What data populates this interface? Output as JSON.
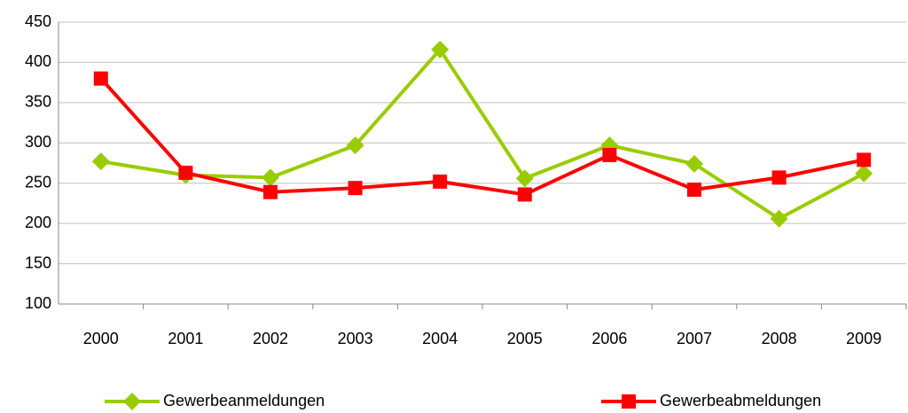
{
  "chart_data": {
    "type": "line",
    "categories": [
      "2000",
      "2001",
      "2002",
      "2003",
      "2004",
      "2005",
      "2006",
      "2007",
      "2008",
      "2009"
    ],
    "series": [
      {
        "name": "Gewerbeanmeldungen",
        "color": "#99cc00",
        "marker": "diamond",
        "values": [
          277,
          260,
          257,
          297,
          416,
          256,
          297,
          274,
          206,
          262
        ]
      },
      {
        "name": "Gewerbeabmeldungen",
        "color": "#ff0000",
        "marker": "square",
        "values": [
          380,
          263,
          239,
          244,
          252,
          236,
          285,
          242,
          257,
          279
        ]
      }
    ],
    "ylim": [
      100,
      450
    ],
    "yticks": [
      100,
      150,
      200,
      250,
      300,
      350,
      400,
      450
    ],
    "grid": true,
    "legend": "bottom"
  }
}
